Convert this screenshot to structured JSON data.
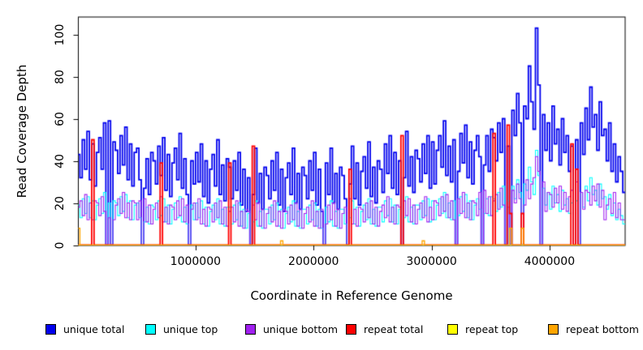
{
  "chart_data": {
    "type": "line-step",
    "title": "",
    "xlabel": "Coordinate in Reference Genome",
    "ylabel": "Read Coverage Depth",
    "xlim": [
      0,
      4640000
    ],
    "ylim": [
      0,
      108
    ],
    "grid": false,
    "legend_position": "bottom",
    "axis_color": "#000000",
    "x_ticks": [
      {
        "value": 1000000,
        "label": "1000000"
      },
      {
        "value": 2000000,
        "label": "2000000"
      },
      {
        "value": 3000000,
        "label": "3000000"
      },
      {
        "value": 4000000,
        "label": "4000000"
      }
    ],
    "y_ticks": [
      {
        "value": 0,
        "label": "0"
      },
      {
        "value": 20,
        "label": "20"
      },
      {
        "value": 40,
        "label": "40"
      },
      {
        "value": 60,
        "label": "60"
      },
      {
        "value": 80,
        "label": "80"
      },
      {
        "value": 100,
        "label": "100"
      }
    ],
    "n_bins": 232,
    "bin_size": 20000,
    "series": [
      {
        "name": "unique total",
        "color": "#0000EE",
        "line_width": 1.8,
        "values": [
          43,
          32,
          50,
          36,
          54,
          31,
          48,
          28,
          44,
          51,
          36,
          58,
          0,
          59,
          0,
          49,
          45,
          34,
          52,
          38,
          56,
          31,
          48,
          28,
          44,
          46,
          31,
          0,
          27,
          41,
          24,
          44,
          40,
          29,
          47,
          33,
          51,
          26,
          43,
          23,
          39,
          46,
          31,
          53,
          27,
          41,
          24,
          0,
          40,
          29,
          44,
          30,
          48,
          23,
          40,
          20,
          36,
          43,
          28,
          50,
          24,
          38,
          21,
          41,
          37,
          22,
          40,
          26,
          44,
          19,
          36,
          16,
          32,
          0,
          24,
          46,
          20,
          34,
          17,
          37,
          33,
          22,
          40,
          26,
          44,
          19,
          36,
          16,
          32,
          39,
          24,
          46,
          20,
          34,
          17,
          37,
          33,
          22,
          40,
          26,
          44,
          19,
          36,
          16,
          0,
          39,
          24,
          46,
          20,
          34,
          17,
          37,
          33,
          22,
          0,
          29,
          47,
          22,
          39,
          19,
          35,
          42,
          27,
          49,
          23,
          37,
          20,
          40,
          36,
          25,
          48,
          34,
          52,
          27,
          44,
          24,
          40,
          0,
          32,
          54,
          28,
          42,
          25,
          45,
          41,
          30,
          48,
          34,
          52,
          27,
          49,
          29,
          45,
          52,
          37,
          59,
          33,
          47,
          30,
          50,
          0,
          35,
          53,
          39,
          57,
          32,
          49,
          29,
          45,
          52,
          42,
          0,
          38,
          52,
          35,
          55,
          51,
          40,
          58,
          44,
          60,
          0,
          47,
          0,
          64,
          52,
          72,
          58,
          0,
          66,
          60,
          85,
          68,
          55,
          103,
          76,
          0,
          62,
          45,
          58,
          40,
          66,
          48,
          55,
          38,
          60,
          44,
          52,
          35,
          47,
          0,
          50,
          0,
          58,
          43,
          65,
          50,
          75,
          56,
          62,
          45,
          68,
          52,
          55,
          40,
          58,
          35,
          48,
          30,
          42,
          35,
          25
        ]
      },
      {
        "name": "unique top",
        "color": "#00FFFF",
        "line_width": 1.1,
        "values": [
          19,
          13,
          22,
          15,
          23,
          13,
          21,
          12,
          19,
          22,
          15,
          25,
          0,
          20,
          0,
          21,
          20,
          14,
          23,
          16,
          24,
          13,
          21,
          12,
          19,
          20,
          13,
          0,
          11,
          18,
          10,
          19,
          18,
          12,
          21,
          14,
          22,
          11,
          19,
          10,
          17,
          20,
          13,
          23,
          11,
          18,
          10,
          0,
          19,
          12,
          20,
          13,
          21,
          10,
          18,
          9,
          16,
          19,
          12,
          22,
          10,
          17,
          9,
          18,
          18,
          10,
          19,
          12,
          20,
          9,
          17,
          8,
          15,
          0,
          11,
          21,
          9,
          16,
          8,
          17,
          17,
          10,
          19,
          12,
          20,
          9,
          17,
          8,
          15,
          18,
          11,
          21,
          9,
          16,
          8,
          17,
          17,
          10,
          19,
          12,
          20,
          9,
          17,
          8,
          0,
          18,
          11,
          21,
          9,
          16,
          8,
          17,
          17,
          10,
          0,
          13,
          21,
          10,
          18,
          9,
          16,
          19,
          12,
          22,
          10,
          17,
          9,
          18,
          18,
          11,
          21,
          14,
          22,
          11,
          19,
          10,
          17,
          0,
          13,
          23,
          11,
          18,
          10,
          19,
          19,
          12,
          21,
          14,
          22,
          11,
          21,
          12,
          19,
          22,
          15,
          25,
          13,
          20,
          12,
          21,
          0,
          14,
          23,
          16,
          24,
          13,
          21,
          12,
          19,
          22,
          17,
          0,
          15,
          22,
          14,
          23,
          22,
          16,
          25,
          18,
          28,
          0,
          21,
          0,
          28,
          22,
          31,
          25,
          0,
          29,
          26,
          37,
          30,
          24,
          45,
          33,
          0,
          27,
          19,
          25,
          17,
          28,
          20,
          24,
          16,
          26,
          19,
          22,
          15,
          20,
          0,
          21,
          0,
          25,
          18,
          28,
          21,
          32,
          24,
          26,
          19,
          29,
          22,
          23,
          17,
          24,
          14,
          20,
          12,
          17,
          14,
          10
        ]
      },
      {
        "name": "unique bottom",
        "color": "#A020F0",
        "line_width": 1.1,
        "values": [
          18,
          21,
          14,
          24,
          12,
          20,
          12,
          21,
          20,
          14,
          23,
          16,
          0,
          13,
          0,
          12,
          19,
          22,
          15,
          25,
          13,
          20,
          12,
          21,
          20,
          12,
          21,
          0,
          22,
          11,
          19,
          10,
          17,
          20,
          13,
          23,
          11,
          18,
          10,
          19,
          18,
          12,
          21,
          14,
          22,
          11,
          19,
          0,
          17,
          20,
          12,
          22,
          10,
          17,
          9,
          18,
          17,
          11,
          20,
          13,
          21,
          10,
          18,
          9,
          16,
          18,
          11,
          21,
          9,
          16,
          8,
          17,
          16,
          0,
          19,
          12,
          20,
          9,
          17,
          8,
          15,
          18,
          11,
          21,
          9,
          16,
          8,
          17,
          16,
          10,
          19,
          12,
          20,
          9,
          17,
          8,
          15,
          18,
          11,
          21,
          9,
          16,
          8,
          17,
          0,
          10,
          19,
          12,
          20,
          9,
          17,
          8,
          15,
          18,
          0,
          22,
          10,
          17,
          9,
          18,
          17,
          11,
          20,
          13,
          21,
          10,
          18,
          9,
          16,
          19,
          13,
          23,
          11,
          18,
          10,
          19,
          18,
          0,
          21,
          14,
          22,
          11,
          19,
          10,
          17,
          20,
          13,
          23,
          11,
          18,
          12,
          21,
          20,
          14,
          23,
          16,
          24,
          13,
          21,
          12,
          0,
          22,
          15,
          25,
          13,
          20,
          12,
          21,
          20,
          14,
          25,
          0,
          26,
          15,
          23,
          14,
          21,
          24,
          17,
          27,
          19,
          0,
          18,
          0,
          26,
          20,
          29,
          22,
          0,
          19,
          31,
          22,
          29,
          32,
          42,
          35,
          0,
          30,
          16,
          25,
          24,
          18,
          27,
          20,
          28,
          17,
          25,
          16,
          23,
          26,
          0,
          30,
          0,
          25,
          17,
          26,
          25,
          19,
          28,
          21,
          29,
          18,
          26,
          12,
          19,
          22,
          15,
          25,
          13,
          20,
          12,
          12
        ]
      },
      {
        "name": "repeat total",
        "color": "#FF0000",
        "line_width": 1.8,
        "base": 0,
        "spikes": {
          "6": 50,
          "35": 39,
          "64": 39,
          "74": 47,
          "115": 36,
          "137": 52,
          "176": 53,
          "182": 57,
          "183": 15,
          "188": 15,
          "209": 48,
          "211": 36
        }
      },
      {
        "name": "repeat top",
        "color": "#FFFF00",
        "line_width": 1.0,
        "base": 0,
        "spikes": {}
      },
      {
        "name": "repeat bottom",
        "color": "#FFA500",
        "line_width": 1.4,
        "base": 0,
        "spikes": {
          "0": 8,
          "86": 2,
          "146": 2,
          "183": 8,
          "188": 8
        }
      }
    ]
  }
}
